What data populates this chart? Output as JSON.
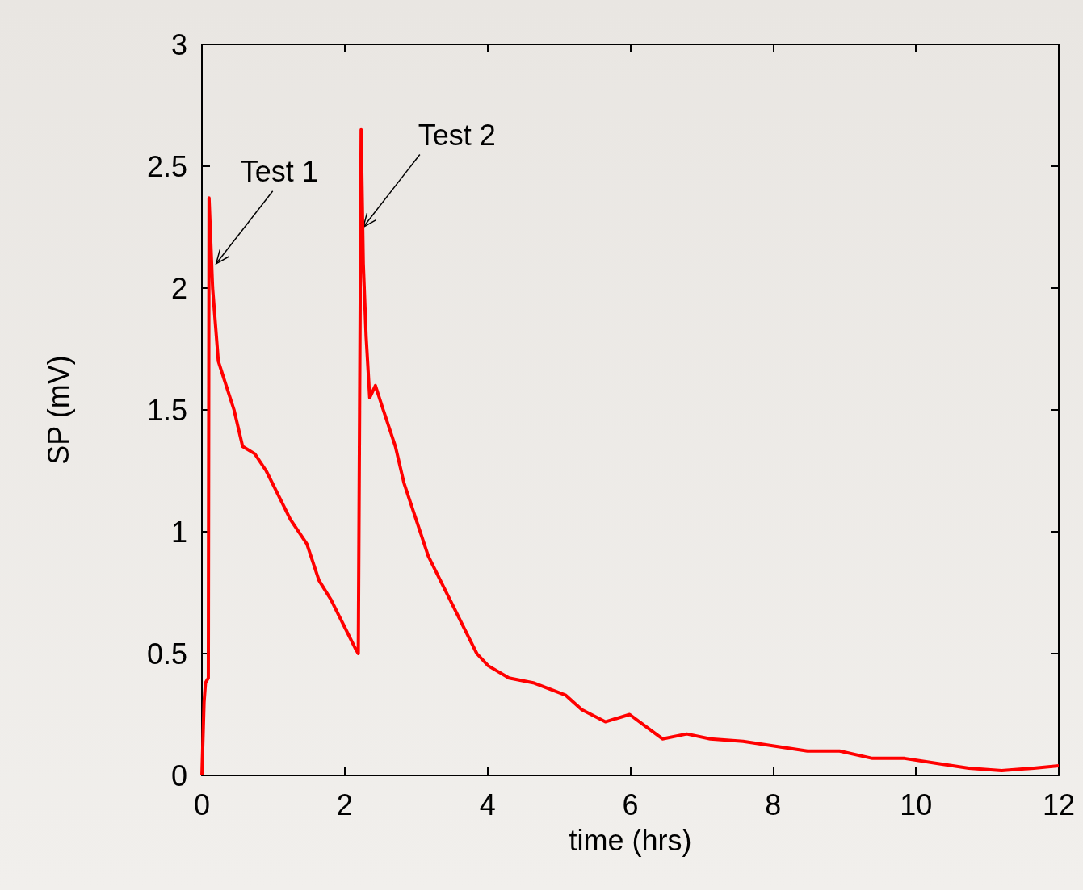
{
  "chart_data": {
    "type": "line",
    "xlabel": "time (hrs)",
    "ylabel": "SP (mV)",
    "x": [
      0,
      0.03,
      0.05,
      0.09,
      0.1,
      0.15,
      0.23,
      0.34,
      0.45,
      0.57,
      0.74,
      0.9,
      1.07,
      1.24,
      1.47,
      1.64,
      1.81,
      1.98,
      2.15,
      2.19,
      2.23,
      2.26,
      2.3,
      2.35,
      2.43,
      2.54,
      2.71,
      2.83,
      3.0,
      3.17,
      3.34,
      3.51,
      3.68,
      3.85,
      4.01,
      4.3,
      4.64,
      5.09,
      5.32,
      5.65,
      5.99,
      6.22,
      6.45,
      6.79,
      7.12,
      7.58,
      8.03,
      8.48,
      8.93,
      9.39,
      9.84,
      10.29,
      10.74,
      11.2,
      11.65,
      12
    ],
    "series": [
      {
        "color": "#ff0000",
        "values": [
          0,
          0.3,
          0.38,
          0.4,
          2.37,
          2.0,
          1.7,
          1.6,
          1.5,
          1.35,
          1.32,
          1.25,
          1.15,
          1.05,
          0.95,
          0.8,
          0.72,
          0.62,
          0.52,
          0.5,
          2.65,
          2.1,
          1.8,
          1.55,
          1.6,
          1.5,
          1.35,
          1.2,
          1.05,
          0.9,
          0.8,
          0.7,
          0.6,
          0.5,
          0.45,
          0.4,
          0.38,
          0.33,
          0.27,
          0.22,
          0.25,
          0.2,
          0.15,
          0.17,
          0.15,
          0.14,
          0.12,
          0.1,
          0.1,
          0.07,
          0.07,
          0.05,
          0.03,
          0.02,
          0.03,
          0.04
        ]
      }
    ],
    "xlim": [
      0,
      12
    ],
    "xticks": [
      0,
      2,
      4,
      6,
      8,
      10,
      12
    ],
    "ylim": [
      0,
      3
    ],
    "yticks": [
      0,
      0.5,
      1,
      1.5,
      2,
      2.5,
      3
    ],
    "annotations": [
      {
        "text": "Test 1",
        "x": 0.2,
        "y": 2.1
      },
      {
        "text": "Test 2",
        "x": 2.26,
        "y": 2.25
      }
    ],
    "grid": false,
    "marker": "none",
    "line_style": "solid"
  }
}
